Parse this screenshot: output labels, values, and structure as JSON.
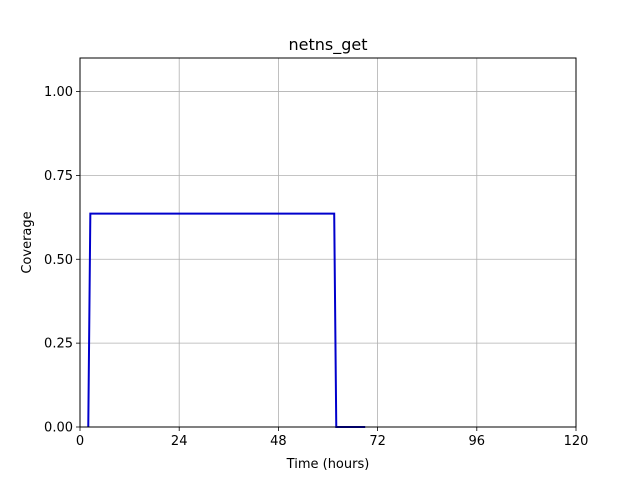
{
  "chart_data": {
    "type": "line",
    "title": "netns_get",
    "xlabel": "Time (hours)",
    "ylabel": "Coverage",
    "xlim": [
      0,
      120
    ],
    "ylim": [
      0,
      1.1
    ],
    "xticks": [
      0,
      24,
      48,
      72,
      96,
      120
    ],
    "xtick_labels": [
      "0",
      "24",
      "48",
      "72",
      "96",
      "120"
    ],
    "yticks": [
      0,
      0.25,
      0.5,
      0.75,
      1.0
    ],
    "ytick_labels": [
      "0.00",
      "0.25",
      "0.50",
      "0.75",
      "1.00"
    ],
    "grid": true,
    "legend": "none",
    "series": [
      {
        "color": "#0000cc",
        "x": [
          2,
          2.5,
          61.5,
          62,
          69
        ],
        "y": [
          0,
          0.636,
          0.636,
          0,
          0
        ]
      }
    ]
  }
}
